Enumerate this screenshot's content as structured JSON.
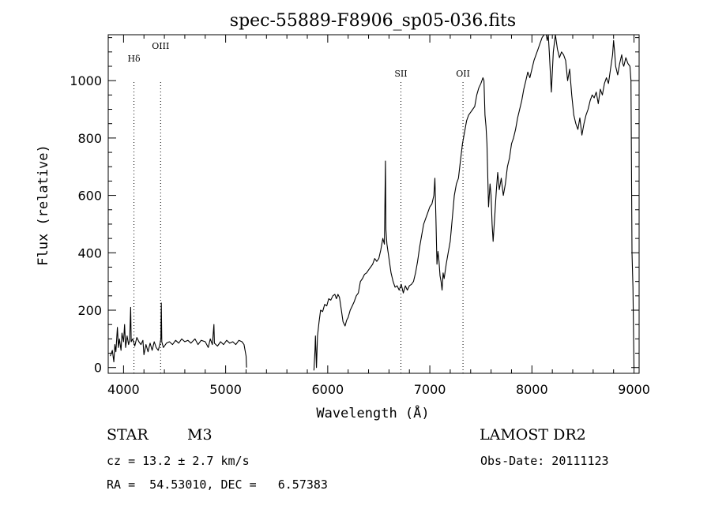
{
  "chart_data": {
    "type": "line",
    "title": "spec-55889-F8906_sp05-036.fits",
    "xlabel": "Wavelength (Å)",
    "ylabel": "Flux (relative)",
    "xlim": [
      3850,
      9050
    ],
    "ylim": [
      -20,
      1160
    ],
    "x_ticks": [
      4000,
      5000,
      6000,
      7000,
      8000,
      9000
    ],
    "y_ticks": [
      0,
      200,
      400,
      600,
      800,
      1000
    ],
    "grid": false,
    "series": [
      {
        "segments": [
          [
            [
              3870,
              40
            ],
            [
              3890,
              60
            ],
            [
              3905,
              20
            ],
            [
              3915,
              80
            ],
            [
              3925,
              55
            ],
            [
              3940,
              140
            ],
            [
              3950,
              70
            ],
            [
              3960,
              100
            ],
            [
              3975,
              60
            ],
            [
              3985,
              120
            ],
            [
              4000,
              90
            ],
            [
              4010,
              150
            ],
            [
              4020,
              70
            ],
            [
              4035,
              110
            ],
            [
              4050,
              80
            ],
            [
              4060,
              95
            ],
            [
              4070,
              210
            ],
            [
              4075,
              90
            ],
            [
              4090,
              100
            ],
            [
              4110,
              75
            ],
            [
              4130,
              105
            ],
            [
              4150,
              90
            ],
            [
              4170,
              80
            ],
            [
              4190,
              95
            ],
            [
              4200,
              45
            ],
            [
              4220,
              80
            ],
            [
              4240,
              55
            ],
            [
              4260,
              85
            ],
            [
              4280,
              60
            ],
            [
              4300,
              90
            ],
            [
              4320,
              70
            ],
            [
              4340,
              60
            ],
            [
              4355,
              80
            ],
            [
              4365,
              100
            ],
            [
              4370,
              225
            ],
            [
              4375,
              90
            ],
            [
              4390,
              70
            ],
            [
              4420,
              85
            ],
            [
              4450,
              90
            ],
            [
              4480,
              80
            ],
            [
              4510,
              95
            ],
            [
              4540,
              85
            ],
            [
              4570,
              100
            ],
            [
              4600,
              90
            ],
            [
              4630,
              95
            ],
            [
              4660,
              85
            ],
            [
              4700,
              100
            ],
            [
              4730,
              80
            ],
            [
              4760,
              95
            ],
            [
              4800,
              90
            ],
            [
              4830,
              70
            ],
            [
              4850,
              100
            ],
            [
              4870,
              80
            ],
            [
              4885,
              150
            ],
            [
              4890,
              85
            ],
            [
              4920,
              75
            ],
            [
              4950,
              90
            ],
            [
              4980,
              80
            ],
            [
              5010,
              95
            ],
            [
              5040,
              85
            ],
            [
              5070,
              90
            ],
            [
              5100,
              80
            ],
            [
              5130,
              95
            ],
            [
              5160,
              90
            ],
            [
              5180,
              80
            ],
            [
              5200,
              40
            ],
            [
              5205,
              0
            ]
          ],
          [
            [
              5865,
              -10
            ],
            [
              5875,
              60
            ],
            [
              5880,
              110
            ],
            [
              5890,
              0
            ],
            [
              5900,
              110
            ],
            [
              5915,
              160
            ],
            [
              5930,
              200
            ],
            [
              5950,
              195
            ],
            [
              5970,
              220
            ],
            [
              5990,
              215
            ],
            [
              6010,
              240
            ],
            [
              6030,
              235
            ],
            [
              6050,
              250
            ],
            [
              6070,
              255
            ],
            [
              6085,
              240
            ],
            [
              6100,
              255
            ],
            [
              6115,
              245
            ],
            [
              6130,
              210
            ],
            [
              6150,
              160
            ],
            [
              6170,
              145
            ],
            [
              6185,
              165
            ],
            [
              6200,
              175
            ],
            [
              6220,
              200
            ],
            [
              6240,
              215
            ],
            [
              6260,
              230
            ],
            [
              6280,
              250
            ],
            [
              6300,
              260
            ],
            [
              6320,
              300
            ],
            [
              6340,
              310
            ],
            [
              6360,
              325
            ],
            [
              6380,
              330
            ],
            [
              6400,
              340
            ],
            [
              6420,
              350
            ],
            [
              6440,
              360
            ],
            [
              6460,
              380
            ],
            [
              6480,
              370
            ],
            [
              6500,
              380
            ],
            [
              6520,
              410
            ],
            [
              6540,
              450
            ],
            [
              6555,
              430
            ],
            [
              6565,
              720
            ],
            [
              6570,
              480
            ],
            [
              6580,
              430
            ],
            [
              6600,
              380
            ],
            [
              6620,
              330
            ],
            [
              6640,
              300
            ],
            [
              6660,
              280
            ],
            [
              6680,
              285
            ],
            [
              6700,
              270
            ],
            [
              6720,
              290
            ],
            [
              6740,
              260
            ],
            [
              6760,
              285
            ],
            [
              6780,
              270
            ],
            [
              6800,
              285
            ],
            [
              6820,
              290
            ],
            [
              6840,
              300
            ],
            [
              6860,
              330
            ],
            [
              6880,
              370
            ],
            [
              6900,
              420
            ],
            [
              6920,
              460
            ],
            [
              6940,
              500
            ],
            [
              6960,
              520
            ],
            [
              6980,
              540
            ],
            [
              7000,
              560
            ],
            [
              7020,
              570
            ],
            [
              7040,
              600
            ],
            [
              7050,
              660
            ],
            [
              7060,
              520
            ],
            [
              7070,
              360
            ],
            [
              7080,
              405
            ],
            [
              7090,
              370
            ],
            [
              7100,
              320
            ],
            [
              7110,
              300
            ],
            [
              7120,
              270
            ],
            [
              7130,
              330
            ],
            [
              7140,
              310
            ],
            [
              7160,
              360
            ],
            [
              7180,
              400
            ],
            [
              7200,
              440
            ],
            [
              7220,
              520
            ],
            [
              7240,
              600
            ],
            [
              7260,
              640
            ],
            [
              7280,
              660
            ],
            [
              7300,
              720
            ],
            [
              7320,
              780
            ],
            [
              7340,
              820
            ],
            [
              7360,
              860
            ],
            [
              7380,
              880
            ],
            [
              7400,
              890
            ],
            [
              7420,
              900
            ],
            [
              7440,
              910
            ],
            [
              7460,
              950
            ],
            [
              7480,
              975
            ],
            [
              7500,
              990
            ],
            [
              7520,
              1010
            ],
            [
              7530,
              1000
            ],
            [
              7540,
              880
            ],
            [
              7550,
              840
            ],
            [
              7560,
              780
            ],
            [
              7575,
              560
            ],
            [
              7590,
              640
            ],
            [
              7600,
              600
            ],
            [
              7610,
              500
            ],
            [
              7620,
              440
            ],
            [
              7635,
              520
            ],
            [
              7650,
              610
            ],
            [
              7665,
              680
            ],
            [
              7680,
              620
            ],
            [
              7700,
              660
            ],
            [
              7720,
              600
            ],
            [
              7740,
              640
            ],
            [
              7760,
              700
            ],
            [
              7780,
              730
            ],
            [
              7800,
              780
            ],
            [
              7820,
              800
            ],
            [
              7840,
              830
            ],
            [
              7860,
              870
            ],
            [
              7880,
              900
            ],
            [
              7900,
              930
            ],
            [
              7920,
              970
            ],
            [
              7940,
              1000
            ],
            [
              7960,
              1030
            ],
            [
              7980,
              1010
            ],
            [
              8000,
              1040
            ],
            [
              8020,
              1070
            ],
            [
              8040,
              1090
            ],
            [
              8060,
              1110
            ],
            [
              8080,
              1130
            ],
            [
              8100,
              1150
            ],
            [
              8120,
              1160
            ],
            [
              8140,
              1160
            ],
            [
              8150,
              1140
            ],
            [
              8160,
              1160
            ],
            [
              8170,
              1100
            ],
            [
              8180,
              1030
            ],
            [
              8190,
              960
            ],
            [
              8210,
              1100
            ],
            [
              8230,
              1160
            ],
            [
              8250,
              1110
            ],
            [
              8270,
              1080
            ],
            [
              8290,
              1100
            ],
            [
              8310,
              1090
            ],
            [
              8330,
              1070
            ],
            [
              8350,
              1000
            ],
            [
              8370,
              1040
            ],
            [
              8390,
              950
            ],
            [
              8410,
              880
            ],
            [
              8430,
              850
            ],
            [
              8450,
              830
            ],
            [
              8470,
              870
            ],
            [
              8490,
              810
            ],
            [
              8510,
              850
            ],
            [
              8530,
              880
            ],
            [
              8550,
              900
            ],
            [
              8570,
              930
            ],
            [
              8590,
              950
            ],
            [
              8610,
              940
            ],
            [
              8630,
              960
            ],
            [
              8650,
              920
            ],
            [
              8670,
              970
            ],
            [
              8690,
              950
            ],
            [
              8710,
              990
            ],
            [
              8730,
              1010
            ],
            [
              8750,
              990
            ],
            [
              8770,
              1040
            ],
            [
              8790,
              1090
            ],
            [
              8800,
              1140
            ],
            [
              8810,
              1100
            ],
            [
              8820,
              1050
            ],
            [
              8840,
              1020
            ],
            [
              8860,
              1060
            ],
            [
              8880,
              1090
            ],
            [
              8890,
              1060
            ],
            [
              8900,
              1050
            ],
            [
              8920,
              1080
            ],
            [
              8940,
              1060
            ],
            [
              8960,
              1050
            ],
            [
              8970,
              1000
            ],
            [
              8980,
              400
            ],
            [
              8990,
              280
            ],
            [
              9000,
              0
            ]
          ]
        ]
      }
    ],
    "line_markers": [
      {
        "label": "Hδ",
        "x": 4102
      },
      {
        "label": "OIII",
        "x": 4363
      },
      {
        "label": "SII",
        "x": 6717
      },
      {
        "label": "OII",
        "x": 7325
      }
    ]
  },
  "info": {
    "object_class": "STAR",
    "subclass": "M3",
    "survey": "LAMOST DR2",
    "cz": "cz = 13.2 ± 2.7 km/s",
    "obs_date": "Obs-Date: 20111123",
    "coords": "RA =  54.53010, DEC =   6.57383"
  }
}
